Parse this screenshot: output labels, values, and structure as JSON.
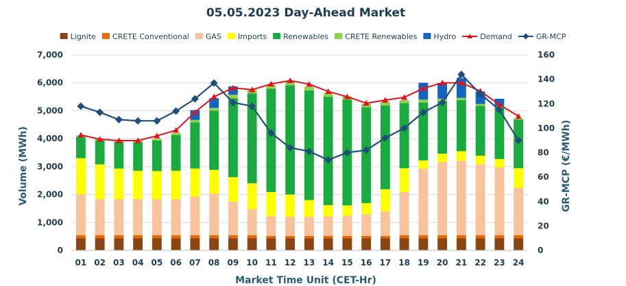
{
  "chart_data": {
    "type": "bar",
    "title": "05.05.2023  Day-Ahead Market",
    "xlabel": "Market Time Unit (CET-Hr)",
    "ylabel": "Volume (MWh)",
    "y2label": "GR-MCP (€/MWh)",
    "ylim": [
      0,
      7000
    ],
    "y2lim": [
      0,
      160
    ],
    "yticks": [
      "0",
      "1,000",
      "2,000",
      "3,000",
      "4,000",
      "5,000",
      "6,000",
      "7,000"
    ],
    "y2ticks": [
      "0",
      "20",
      "40",
      "60",
      "80",
      "100",
      "120",
      "140",
      "160"
    ],
    "grid": true,
    "legend_position": "top",
    "categories": [
      "01",
      "02",
      "03",
      "04",
      "05",
      "06",
      "07",
      "08",
      "09",
      "10",
      "11",
      "12",
      "13",
      "14",
      "15",
      "16",
      "17",
      "18",
      "19",
      "20",
      "21",
      "22",
      "23",
      "24"
    ],
    "series": [
      {
        "name": "Lignite",
        "kind": "bar",
        "color": "#8b4513",
        "values": [
          430,
          430,
          430,
          430,
          430,
          430,
          430,
          430,
          430,
          430,
          430,
          430,
          430,
          430,
          430,
          430,
          430,
          430,
          430,
          430,
          430,
          430,
          430,
          430
        ]
      },
      {
        "name": "CRETE Conventional",
        "kind": "bar",
        "color": "#e46c0a",
        "values": [
          110,
          110,
          110,
          110,
          110,
          110,
          110,
          110,
          110,
          110,
          90,
          90,
          90,
          90,
          90,
          90,
          90,
          110,
          110,
          110,
          110,
          110,
          110,
          110
        ]
      },
      {
        "name": "GAS",
        "kind": "bar",
        "color": "#f8c39c",
        "values": [
          1460,
          1290,
          1290,
          1290,
          1290,
          1290,
          1390,
          1490,
          1200,
          930,
          700,
          680,
          680,
          700,
          720,
          770,
          870,
          1550,
          2380,
          2620,
          2660,
          2550,
          2430,
          1700
        ]
      },
      {
        "name": "Imports",
        "kind": "bar",
        "color": "#ffff00",
        "values": [
          1300,
          1250,
          1100,
          1020,
          1010,
          1020,
          1000,
          850,
          880,
          930,
          870,
          800,
          600,
          400,
          370,
          400,
          800,
          850,
          300,
          300,
          350,
          300,
          300,
          700
        ]
      },
      {
        "name": "Renewables",
        "kind": "bar",
        "color": "#1aab40",
        "values": [
          760,
          860,
          960,
          1020,
          1090,
          1280,
          1650,
          2120,
          2830,
          3220,
          3700,
          3910,
          3930,
          3880,
          3780,
          3430,
          3000,
          2330,
          2080,
          1880,
          1830,
          1780,
          1850,
          1740
        ]
      },
      {
        "name": "CRETE Renewables",
        "kind": "bar",
        "color": "#92d050",
        "values": [
          60,
          60,
          60,
          60,
          60,
          70,
          90,
          100,
          120,
          130,
          130,
          130,
          130,
          130,
          130,
          130,
          120,
          110,
          100,
          90,
          80,
          70,
          60,
          50
        ]
      },
      {
        "name": "Hydro",
        "kind": "bar",
        "color": "#1565c0",
        "values": [
          0,
          0,
          0,
          0,
          0,
          0,
          350,
          350,
          300,
          0,
          0,
          0,
          0,
          0,
          0,
          0,
          0,
          0,
          600,
          560,
          710,
          450,
          250,
          0
        ]
      },
      {
        "name": "Demand",
        "kind": "line",
        "axis": "y",
        "color": "#e3111b",
        "values": [
          4130,
          3980,
          3930,
          3930,
          4100,
          4300,
          4950,
          5500,
          5820,
          5750,
          5960,
          6080,
          5950,
          5690,
          5500,
          5270,
          5380,
          5480,
          5800,
          6000,
          6000,
          5700,
          5220,
          4800
        ]
      },
      {
        "name": "GR-MCP",
        "kind": "line",
        "axis": "y2",
        "color": "#1f4e79",
        "values": [
          118,
          113,
          107,
          106,
          106,
          114,
          124,
          137,
          121,
          118,
          96,
          84,
          81,
          74,
          80,
          82,
          92,
          100,
          113,
          121,
          144,
          128,
          115,
          90
        ]
      }
    ]
  }
}
